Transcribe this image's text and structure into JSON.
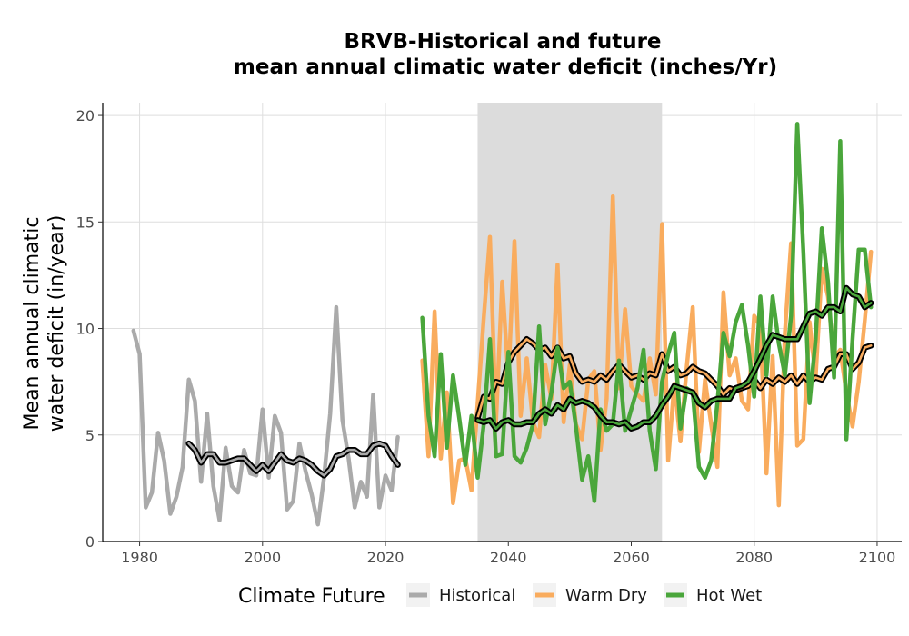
{
  "chart_data": {
    "type": "line",
    "title": [
      "BRVB-Historical and future",
      "mean annual climatic water deficit (inches/Yr)"
    ],
    "xlabel": "",
    "ylabel": [
      "Mean annual climatic",
      "water deficit (in/year)"
    ],
    "xlim": [
      1974,
      2104
    ],
    "ylim": [
      0,
      20.6
    ],
    "x_ticks": [
      1980,
      2000,
      2020,
      2040,
      2060,
      2080,
      2100
    ],
    "y_ticks": [
      0,
      5,
      10,
      15,
      20
    ],
    "grid": true,
    "shaded_region": {
      "x_start": 2035,
      "x_end": 2065,
      "color": "#dcdcdc"
    },
    "legend": {
      "title": "Climate Future",
      "placement": "bottom",
      "entries": [
        {
          "label": "Historical",
          "color": "#aaaaaa"
        },
        {
          "label": "Warm Dry",
          "color": "#f9ac5e"
        },
        {
          "label": "Hot Wet",
          "color": "#4aa63b"
        }
      ]
    },
    "series": [
      {
        "name": "Historical",
        "color": "#aaaaaa",
        "x": [
          1979,
          1980,
          1981,
          1982,
          1983,
          1984,
          1985,
          1986,
          1987,
          1988,
          1989,
          1990,
          1991,
          1992,
          1993,
          1994,
          1995,
          1996,
          1997,
          1998,
          1999,
          2000,
          2001,
          2002,
          2003,
          2004,
          2005,
          2006,
          2007,
          2008,
          2009,
          2010,
          2011,
          2012,
          2013,
          2014,
          2015,
          2016,
          2017,
          2018,
          2019,
          2020,
          2021,
          2022
        ],
        "y": [
          9.9,
          8.8,
          1.6,
          2.3,
          5.1,
          3.8,
          1.3,
          2.1,
          3.5,
          7.6,
          6.6,
          2.8,
          6.0,
          2.6,
          1.0,
          4.4,
          2.6,
          2.3,
          4.3,
          3.2,
          3.1,
          6.2,
          3.0,
          5.9,
          5.1,
          1.5,
          1.9,
          4.6,
          3.3,
          2.2,
          0.8,
          3.0,
          6.0,
          11.0,
          5.7,
          3.9,
          1.6,
          2.8,
          2.1,
          6.9,
          1.6,
          3.1,
          2.4,
          4.9
        ]
      },
      {
        "name": "",
        "color": "#000000",
        "style": "rolling-mean",
        "x": [
          1988,
          1989,
          1990,
          1991,
          1992,
          1993,
          1994,
          1995,
          1996,
          1997,
          1998,
          1999,
          2000,
          2001,
          2002,
          2003,
          2004,
          2005,
          2006,
          2007,
          2008,
          2009,
          2010,
          2011,
          2012,
          2013,
          2014,
          2015,
          2016,
          2017,
          2018,
          2019,
          2020,
          2021,
          2022
        ],
        "y": [
          4.6,
          4.3,
          3.7,
          4.1,
          4.1,
          3.7,
          3.7,
          3.8,
          3.9,
          3.9,
          3.6,
          3.3,
          3.6,
          3.3,
          3.7,
          4.1,
          3.8,
          3.7,
          3.9,
          3.8,
          3.6,
          3.3,
          3.1,
          3.4,
          4.0,
          4.1,
          4.3,
          4.3,
          4.1,
          4.1,
          4.5,
          4.6,
          4.5,
          4.0,
          3.6
        ]
      },
      {
        "name": "Warm Dry",
        "color": "#f9ac5e",
        "x": [
          2026,
          2027,
          2028,
          2029,
          2030,
          2031,
          2032,
          2033,
          2034,
          2035,
          2036,
          2037,
          2038,
          2039,
          2040,
          2041,
          2042,
          2043,
          2044,
          2045,
          2046,
          2047,
          2048,
          2049,
          2050,
          2051,
          2052,
          2053,
          2054,
          2055,
          2056,
          2057,
          2058,
          2059,
          2060,
          2061,
          2062,
          2063,
          2064,
          2065,
          2066,
          2067,
          2068,
          2069,
          2070,
          2071,
          2072,
          2073,
          2074,
          2075,
          2076,
          2077,
          2078,
          2079,
          2080,
          2081,
          2082,
          2083,
          2084,
          2085,
          2086,
          2087,
          2088,
          2089,
          2090,
          2091,
          2092,
          2093,
          2094,
          2095,
          2096,
          2097,
          2098,
          2099
        ],
        "y": [
          8.5,
          4.0,
          10.8,
          3.9,
          7.0,
          1.8,
          3.8,
          3.9,
          2.4,
          6.5,
          10.5,
          14.3,
          5.6,
          12.2,
          7.6,
          14.1,
          5.9,
          8.6,
          5.6,
          4.9,
          8.3,
          6.7,
          13.0,
          5.6,
          8.3,
          5.5,
          4.8,
          7.6,
          8.0,
          4.3,
          6.7,
          16.2,
          7.2,
          10.9,
          7.3,
          6.9,
          6.6,
          8.6,
          6.9,
          14.9,
          3.8,
          7.4,
          4.7,
          8.1,
          11.0,
          4.2,
          7.6,
          5.5,
          3.5,
          11.7,
          7.8,
          8.6,
          6.6,
          6.2,
          10.6,
          10.1,
          3.2,
          8.7,
          1.7,
          9.8,
          14.0,
          4.5,
          4.8,
          10.3,
          7.7,
          12.8,
          11.5,
          8.6,
          9.0,
          7.0,
          5.4,
          7.5,
          10.4,
          13.6
        ]
      },
      {
        "name": "",
        "color": "#000000",
        "style": "rolling-mean",
        "x": [
          2035,
          2036,
          2037,
          2038,
          2039,
          2040,
          2041,
          2042,
          2043,
          2044,
          2045,
          2046,
          2047,
          2048,
          2049,
          2050,
          2051,
          2052,
          2053,
          2054,
          2055,
          2056,
          2057,
          2058,
          2059,
          2060,
          2061,
          2062,
          2063,
          2064,
          2065,
          2066,
          2067,
          2068,
          2069,
          2070,
          2071,
          2072,
          2073,
          2074,
          2075,
          2076,
          2077,
          2078,
          2079,
          2080,
          2081,
          2082,
          2083,
          2084,
          2085,
          2086,
          2087,
          2088,
          2089,
          2090,
          2091,
          2092,
          2093,
          2094,
          2095,
          2096,
          2097,
          2098,
          2099
        ],
        "y": [
          5.8,
          6.8,
          6.7,
          7.5,
          7.4,
          8.4,
          8.9,
          9.2,
          9.5,
          9.3,
          9.0,
          9.1,
          8.7,
          9.1,
          8.6,
          8.7,
          7.9,
          7.5,
          7.6,
          7.5,
          7.8,
          7.6,
          8.0,
          8.3,
          8.0,
          7.7,
          7.8,
          7.6,
          7.9,
          7.8,
          8.8,
          8.0,
          8.2,
          7.8,
          7.9,
          8.2,
          8.0,
          7.9,
          7.6,
          7.3,
          6.9,
          7.2,
          7.1,
          7.2,
          7.3,
          7.6,
          7.2,
          7.6,
          7.4,
          7.7,
          7.5,
          7.8,
          7.4,
          7.8,
          7.5,
          7.7,
          7.6,
          8.1,
          8.2,
          8.8,
          8.8,
          8.1,
          8.4,
          9.1,
          9.2
        ]
      },
      {
        "name": "Hot Wet",
        "color": "#4aa63b",
        "x": [
          2026,
          2027,
          2028,
          2029,
          2030,
          2031,
          2032,
          2033,
          2034,
          2035,
          2036,
          2037,
          2038,
          2039,
          2040,
          2041,
          2042,
          2043,
          2044,
          2045,
          2046,
          2047,
          2048,
          2049,
          2050,
          2051,
          2052,
          2053,
          2054,
          2055,
          2056,
          2057,
          2058,
          2059,
          2060,
          2061,
          2062,
          2063,
          2064,
          2065,
          2066,
          2067,
          2068,
          2069,
          2070,
          2071,
          2072,
          2073,
          2074,
          2075,
          2076,
          2077,
          2078,
          2079,
          2080,
          2081,
          2082,
          2083,
          2084,
          2085,
          2086,
          2087,
          2088,
          2089,
          2090,
          2091,
          2092,
          2093,
          2094,
          2095,
          2096,
          2097,
          2098,
          2099
        ],
        "y": [
          10.5,
          5.9,
          4.0,
          8.8,
          4.4,
          7.8,
          5.8,
          3.6,
          5.9,
          3.0,
          5.5,
          9.5,
          4.0,
          4.1,
          8.9,
          4.0,
          3.7,
          4.4,
          5.5,
          10.1,
          5.5,
          7.0,
          9.1,
          7.2,
          7.5,
          5.4,
          2.9,
          4.0,
          1.9,
          6.2,
          5.2,
          5.5,
          8.5,
          5.2,
          6.2,
          7.2,
          9.0,
          5.2,
          3.4,
          7.5,
          8.8,
          9.8,
          5.3,
          7.2,
          7.0,
          3.5,
          3.0,
          3.8,
          6.5,
          9.8,
          8.7,
          10.3,
          11.1,
          9.2,
          6.8,
          11.5,
          7.8,
          11.5,
          9.3,
          7.8,
          10.6,
          19.6,
          13.6,
          6.5,
          9.5,
          14.7,
          12.2,
          7.7,
          18.8,
          4.8,
          9.5,
          13.7,
          13.7,
          11.0
        ]
      },
      {
        "name": "",
        "color": "#000000",
        "style": "rolling-mean",
        "x": [
          2035,
          2036,
          2037,
          2038,
          2039,
          2040,
          2041,
          2042,
          2043,
          2044,
          2045,
          2046,
          2047,
          2048,
          2049,
          2050,
          2051,
          2052,
          2053,
          2054,
          2055,
          2056,
          2057,
          2058,
          2059,
          2060,
          2061,
          2062,
          2063,
          2064,
          2065,
          2066,
          2067,
          2068,
          2069,
          2070,
          2071,
          2072,
          2073,
          2074,
          2075,
          2076,
          2077,
          2078,
          2079,
          2080,
          2081,
          2082,
          2083,
          2084,
          2085,
          2086,
          2087,
          2088,
          2089,
          2090,
          2091,
          2092,
          2093,
          2094,
          2095,
          2096,
          2097,
          2098,
          2099
        ],
        "y": [
          5.7,
          5.6,
          5.7,
          5.3,
          5.6,
          5.7,
          5.5,
          5.5,
          5.6,
          5.6,
          6.0,
          6.2,
          6.0,
          6.4,
          6.2,
          6.7,
          6.5,
          6.6,
          6.5,
          6.3,
          5.9,
          5.6,
          5.6,
          5.5,
          5.6,
          5.3,
          5.4,
          5.6,
          5.6,
          5.9,
          6.4,
          6.8,
          7.3,
          7.2,
          7.1,
          7.0,
          6.5,
          6.3,
          6.6,
          6.7,
          6.7,
          6.7,
          7.2,
          7.3,
          7.5,
          8.0,
          8.6,
          9.2,
          9.7,
          9.6,
          9.5,
          9.5,
          9.5,
          10.1,
          10.7,
          10.8,
          10.6,
          11.0,
          11.0,
          10.8,
          11.9,
          11.6,
          11.5,
          11.0,
          11.2
        ]
      }
    ]
  }
}
